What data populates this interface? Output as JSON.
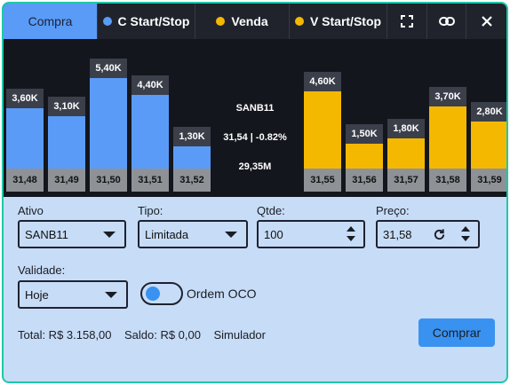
{
  "tabs": {
    "compra": "Compra",
    "c_start_stop": "C Start/Stop",
    "venda": "Venda",
    "v_start_stop": "V Start/Stop"
  },
  "colors": {
    "buy": "#5a9bf8",
    "sell": "#f5b800",
    "accent_border": "#1fc8a9"
  },
  "icons": [
    "expand-icon",
    "link-icon",
    "close-icon"
  ],
  "book": {
    "center": {
      "ticker": "SANB11",
      "price_change": "31,54 | -0.82%",
      "volume": "29,35M"
    },
    "bids": [
      {
        "qty": "3,60K",
        "price": "31,48",
        "value": 3.6
      },
      {
        "qty": "3,10K",
        "price": "31,49",
        "value": 3.1
      },
      {
        "qty": "5,40K",
        "price": "31,50",
        "value": 5.4
      },
      {
        "qty": "4,40K",
        "price": "31,51",
        "value": 4.4
      },
      {
        "qty": "1,30K",
        "price": "31,52",
        "value": 1.3
      }
    ],
    "asks": [
      {
        "qty": "4,60K",
        "price": "31,55",
        "value": 4.6
      },
      {
        "qty": "1,50K",
        "price": "31,56",
        "value": 1.5
      },
      {
        "qty": "1,80K",
        "price": "31,57",
        "value": 1.8
      },
      {
        "qty": "3,70K",
        "price": "31,58",
        "value": 3.7
      },
      {
        "qty": "2,80K",
        "price": "31,59",
        "value": 2.8
      }
    ]
  },
  "form": {
    "ativo_label": "Ativo",
    "ativo_value": "SANB11",
    "tipo_label": "Tipo:",
    "tipo_value": "Limitada",
    "qtde_label": "Qtde:",
    "qtde_value": "100",
    "preco_label": "Preço:",
    "preco_value": "31,58",
    "validade_label": "Validade:",
    "validade_value": "Hoje",
    "oco_label": "Ordem OCO"
  },
  "footer": {
    "total": "Total: R$ 3.158,00",
    "saldo": "Saldo: R$ 0,00",
    "mode": "Simulador",
    "buy_label": "Comprar"
  }
}
